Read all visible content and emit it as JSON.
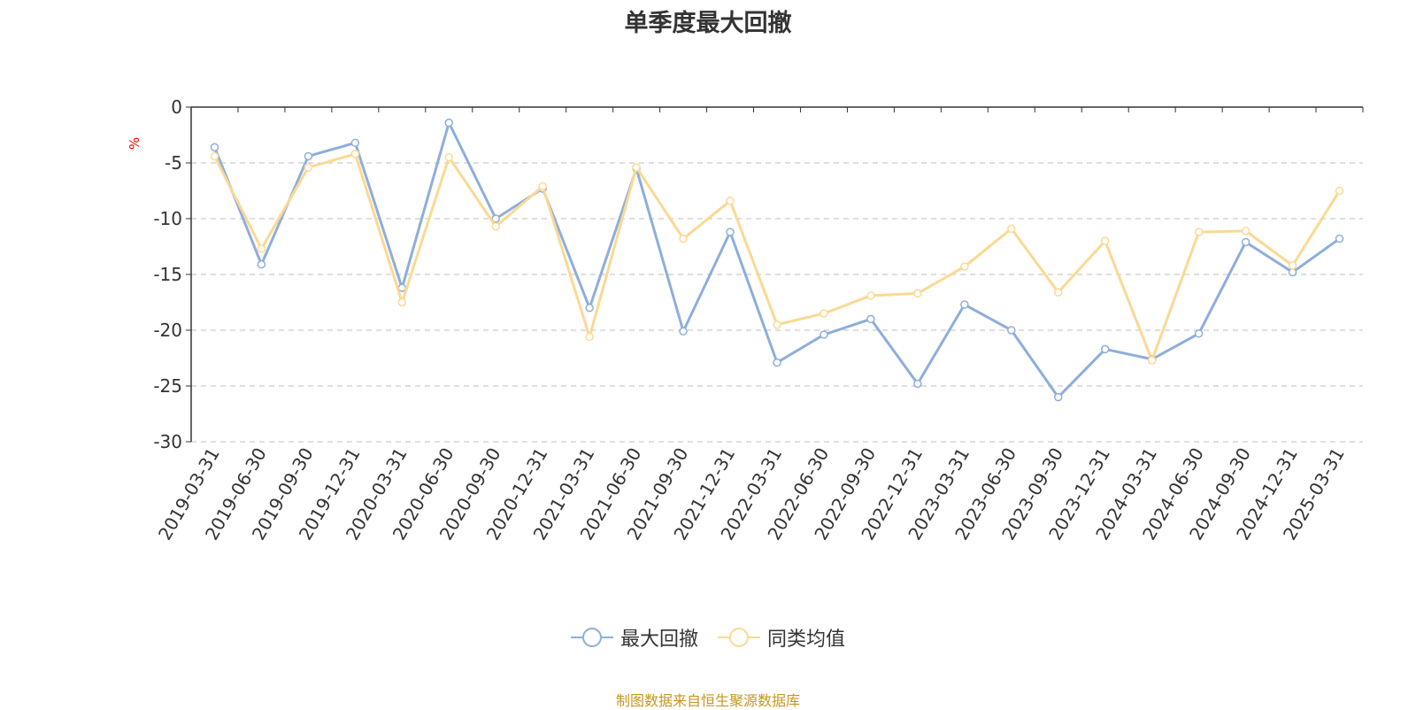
{
  "chart_data": {
    "type": "line",
    "title": "单季度最大回撤",
    "ylabel": "%",
    "ylim": [
      -30,
      0
    ],
    "yticks": [
      0,
      -5,
      -10,
      -15,
      -20,
      -25,
      -30
    ],
    "grid": true,
    "legend_position": "bottom",
    "categories": [
      "2019-03-31",
      "2019-06-30",
      "2019-09-30",
      "2019-12-31",
      "2020-03-31",
      "2020-06-30",
      "2020-09-30",
      "2020-12-31",
      "2021-03-31",
      "2021-06-30",
      "2021-09-30",
      "2021-12-31",
      "2022-03-31",
      "2022-06-30",
      "2022-09-30",
      "2022-12-31",
      "2023-03-31",
      "2023-06-30",
      "2023-09-30",
      "2023-12-31",
      "2024-03-31",
      "2024-06-30",
      "2024-09-30",
      "2024-12-31",
      "2025-03-31"
    ],
    "series": [
      {
        "name": "最大回撤",
        "color": "#8eaedb",
        "values": [
          -3.6,
          -14.1,
          -4.4,
          -3.2,
          -16.2,
          -1.4,
          -10.0,
          -7.3,
          -18.0,
          -5.5,
          -20.1,
          -11.2,
          -22.9,
          -20.4,
          -19.0,
          -24.8,
          -17.7,
          -20.0,
          -26.0,
          -21.7,
          -22.6,
          -20.3,
          -12.1,
          -14.8,
          -11.8
        ]
      },
      {
        "name": "同类均值",
        "color": "#fbd993",
        "values": [
          -4.4,
          -12.7,
          -5.4,
          -4.2,
          -17.5,
          -4.5,
          -10.7,
          -7.1,
          -20.6,
          -5.4,
          -11.8,
          -8.4,
          -19.5,
          -18.5,
          -16.9,
          -16.7,
          -14.3,
          -10.9,
          -16.6,
          -12.0,
          -22.7,
          -11.2,
          -11.1,
          -14.2,
          -7.5
        ]
      }
    ]
  },
  "source_note": "制图数据来自恒生聚源数据库"
}
